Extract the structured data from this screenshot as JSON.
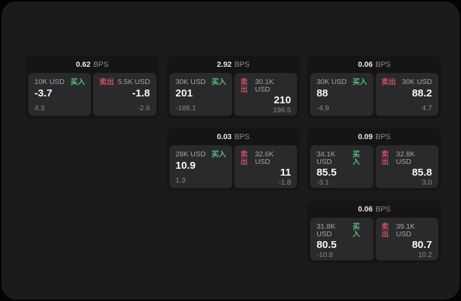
{
  "labels": {
    "bps": "BPS",
    "buy": "买入",
    "sell": "卖出"
  },
  "colors": {
    "background": "#030303",
    "panel": "#1b1b1d",
    "card": "#151517",
    "tile": "#2a2a2d",
    "buy": "#57c07a",
    "sell": "#cd4f66"
  },
  "cards": [
    {
      "bps": "0.62",
      "buy": {
        "notional": "10K USD",
        "price": "-3.7",
        "delta": "4.3"
      },
      "sell": {
        "notional": "5.5K USD",
        "price": "-1.8",
        "delta": "-2.6"
      }
    },
    {
      "bps": "2.92",
      "buy": {
        "notional": "30K USD",
        "price": "201",
        "delta": "-188.1"
      },
      "sell": {
        "notional": "30.1K USD",
        "price": "210",
        "delta": "196.5"
      }
    },
    {
      "bps": "0.06",
      "buy": {
        "notional": "30K USD",
        "price": "88",
        "delta": "-4.9"
      },
      "sell": {
        "notional": "30K USD",
        "price": "88.2",
        "delta": "4.7"
      }
    },
    {
      "bps": "0.03",
      "buy": {
        "notional": "28K USD",
        "price": "10.9",
        "delta": "1.3"
      },
      "sell": {
        "notional": "32.6K USD",
        "price": "11",
        "delta": "-1.8"
      }
    },
    {
      "bps": "0.09",
      "buy": {
        "notional": "34.1K USD",
        "price": "85.5",
        "delta": "-3.1"
      },
      "sell": {
        "notional": "32.8K USD",
        "price": "85.8",
        "delta": "3.0"
      }
    },
    {
      "bps": "0.06",
      "buy": {
        "notional": "31.8K USD",
        "price": "80.5",
        "delta": "-10.8"
      },
      "sell": {
        "notional": "39.1K USD",
        "price": "80.7",
        "delta": "10.2"
      }
    }
  ]
}
